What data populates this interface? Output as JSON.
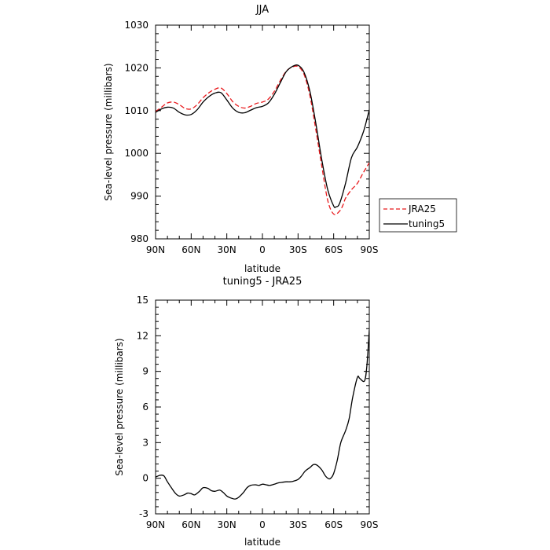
{
  "chart_data": [
    {
      "type": "line",
      "title": "JJA",
      "xlabel": "latitude",
      "ylabel": "Sea-level pressure (millibars)",
      "xlim": [
        90,
        -90
      ],
      "ylim": [
        980,
        1030
      ],
      "x_ticks": [
        90,
        60,
        30,
        0,
        -30,
        -60,
        -90
      ],
      "x_tick_labels": [
        "90N",
        "60N",
        "30N",
        "0",
        "30S",
        "60S",
        "90S"
      ],
      "y_ticks": [
        980,
        990,
        1000,
        1010,
        1020,
        1030
      ],
      "y_tick_labels": [
        "980",
        "990",
        "1000",
        "1010",
        "1020",
        "1030"
      ],
      "grid": false,
      "legend_position": "outside-right",
      "series": [
        {
          "name": "JRA25",
          "color": "#e8191c",
          "dash": "dashed",
          "x": [
            90,
            85,
            80,
            75,
            70,
            65,
            60,
            55,
            50,
            45,
            40,
            35,
            30,
            25,
            20,
            15,
            10,
            5,
            0,
            -5,
            -10,
            -15,
            -20,
            -25,
            -30,
            -35,
            -40,
            -45,
            -50,
            -55,
            -60,
            -65,
            -68,
            -70,
            -75,
            -80,
            -85,
            -90
          ],
          "y": [
            1009.8,
            1010.8,
            1011.8,
            1012.0,
            1011.4,
            1010.5,
            1010.4,
            1011.4,
            1013.0,
            1014.2,
            1015.0,
            1015.3,
            1014.0,
            1012.1,
            1011.0,
            1010.6,
            1011.0,
            1011.7,
            1012.0,
            1012.7,
            1014.5,
            1017.0,
            1019.2,
            1020.2,
            1020.3,
            1018.5,
            1013.5,
            1005.5,
            997.0,
            989.0,
            985.8,
            986.5,
            988.0,
            989.5,
            991.5,
            993.0,
            995.5,
            997.8
          ]
        },
        {
          "name": "tuning5",
          "color": "#000000",
          "dash": "solid",
          "x": [
            90,
            85,
            80,
            75,
            70,
            65,
            60,
            55,
            50,
            45,
            40,
            35,
            30,
            25,
            20,
            15,
            10,
            5,
            0,
            -5,
            -10,
            -15,
            -20,
            -25,
            -30,
            -35,
            -40,
            -45,
            -50,
            -55,
            -60,
            -62,
            -65,
            -70,
            -75,
            -80,
            -85,
            -88,
            -90
          ],
          "y": [
            1009.6,
            1010.4,
            1010.8,
            1010.6,
            1009.6,
            1009.0,
            1009.1,
            1010.2,
            1012.0,
            1013.3,
            1014.1,
            1014.2,
            1012.5,
            1010.6,
            1009.6,
            1009.5,
            1010.1,
            1010.7,
            1011.0,
            1011.8,
            1013.8,
            1016.5,
            1019.1,
            1020.3,
            1020.6,
            1019.0,
            1014.5,
            1007.0,
            998.5,
            991.5,
            987.7,
            987.5,
            988.3,
            993.0,
            999.0,
            1001.5,
            1005.0,
            1008.0,
            1010.2
          ]
        }
      ]
    },
    {
      "type": "line",
      "title": "tuning5 - JRA25",
      "xlabel": "latitude",
      "ylabel": "Sea-level pressure (millibars)",
      "xlim": [
        90,
        -90
      ],
      "ylim": [
        -3,
        15
      ],
      "x_ticks": [
        90,
        60,
        30,
        0,
        -30,
        -60,
        -90
      ],
      "x_tick_labels": [
        "90N",
        "60N",
        "30N",
        "0",
        "30S",
        "60S",
        "90S"
      ],
      "y_ticks": [
        -3,
        0,
        3,
        6,
        9,
        12,
        15
      ],
      "y_tick_labels": [
        "-3",
        "0",
        "3",
        "6",
        "9",
        "12",
        "15"
      ],
      "grid": false,
      "series": [
        {
          "color": "#000000",
          "dash": "solid",
          "x": [
            90,
            86,
            83,
            80,
            76,
            73,
            70,
            66,
            63,
            60,
            57,
            53,
            50,
            46,
            43,
            40,
            36,
            33,
            30,
            27,
            23,
            20,
            16,
            13,
            10,
            6,
            3,
            0,
            -3,
            -6,
            -10,
            -13,
            -16,
            -20,
            -23,
            -26,
            -30,
            -33,
            -36,
            -40,
            -43,
            -46,
            -50,
            -53,
            -56,
            -58,
            -60,
            -63,
            -66,
            -70,
            -73,
            -76,
            -80,
            -82,
            -86,
            -88,
            -90
          ],
          "y": [
            0.1,
            0.25,
            0.2,
            -0.3,
            -0.9,
            -1.3,
            -1.5,
            -1.4,
            -1.25,
            -1.3,
            -1.4,
            -1.1,
            -0.8,
            -0.85,
            -1.05,
            -1.1,
            -1.0,
            -1.2,
            -1.5,
            -1.65,
            -1.75,
            -1.6,
            -1.2,
            -0.8,
            -0.6,
            -0.55,
            -0.6,
            -0.5,
            -0.55,
            -0.6,
            -0.5,
            -0.4,
            -0.35,
            -0.3,
            -0.3,
            -0.25,
            -0.1,
            0.2,
            0.6,
            0.9,
            1.15,
            1.1,
            0.7,
            0.2,
            -0.05,
            0.05,
            0.4,
            1.5,
            3.0,
            4.0,
            5.0,
            6.8,
            8.5,
            8.4,
            8.2,
            9.5,
            12.5
          ]
        }
      ]
    }
  ]
}
